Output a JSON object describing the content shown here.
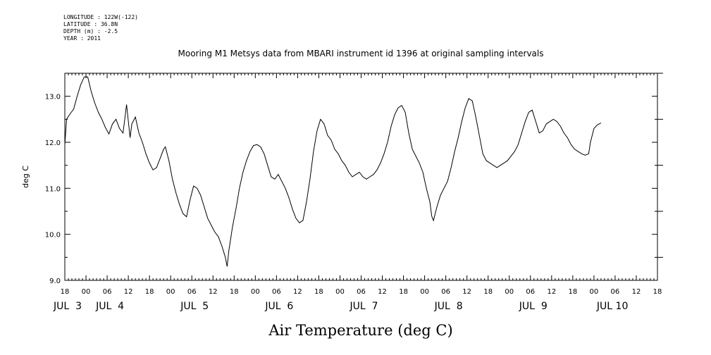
{
  "meta": {
    "longitude": "LONGITUDE : 122W(-122)",
    "latitude": "LATITUDE : 36.8N",
    "depth": "DEPTH (m) : -2.5",
    "year": "YEAR : 2011"
  },
  "chart_data": {
    "type": "line",
    "title": "Mooring M1 Metsys data from MBARI instrument id 1396 at original sampling intervals",
    "xlabel": "Air Temperature (deg C)",
    "ylabel": "deg C",
    "ylim": [
      9.0,
      13.5
    ],
    "yticks": [
      "9.0",
      "10.0",
      "11.0",
      "12.0",
      "13.0"
    ],
    "yticks_values": [
      9.0,
      10.0,
      11.0,
      12.0,
      13.0
    ],
    "xlim_hours": [
      -6,
      162
    ],
    "x_hour_tick_labels": [
      "18",
      "00",
      "06",
      "12",
      "18",
      "00",
      "06",
      "12",
      "18",
      "00",
      "06",
      "12",
      "18",
      "00",
      "06",
      "12",
      "18",
      "00",
      "06",
      "12",
      "18",
      "00",
      "06",
      "12",
      "18",
      "00",
      "06",
      "12",
      "18"
    ],
    "x_day_labels": [
      {
        "text": "JUL  3",
        "at_hour": -6
      },
      {
        "text": "JUL  4",
        "at_hour": 6
      },
      {
        "text": "JUL  5",
        "at_hour": 30
      },
      {
        "text": "JUL  6",
        "at_hour": 54
      },
      {
        "text": "JUL  7",
        "at_hour": 78
      },
      {
        "text": "JUL  8",
        "at_hour": 102
      },
      {
        "text": "JUL  9",
        "at_hour": 126
      },
      {
        "text": "JUL 10",
        "at_hour": 148
      }
    ],
    "grid": false,
    "series": [
      {
        "points": [
          [
            -6,
            11.95
          ],
          [
            -5.5,
            12.5
          ],
          [
            -4.5,
            12.62
          ],
          [
            -3.5,
            12.72
          ],
          [
            -2.5,
            13.0
          ],
          [
            -1.5,
            13.25
          ],
          [
            -0.5,
            13.42
          ],
          [
            0.5,
            13.42
          ],
          [
            1.5,
            13.1
          ],
          [
            2.5,
            12.85
          ],
          [
            3.5,
            12.65
          ],
          [
            4.5,
            12.5
          ],
          [
            5.5,
            12.32
          ],
          [
            6.5,
            12.18
          ],
          [
            7.5,
            12.4
          ],
          [
            8.5,
            12.5
          ],
          [
            9.5,
            12.3
          ],
          [
            10.5,
            12.2
          ],
          [
            11.5,
            12.82
          ],
          [
            12.5,
            12.1
          ],
          [
            13,
            12.4
          ],
          [
            14,
            12.55
          ],
          [
            15,
            12.2
          ],
          [
            16,
            12.0
          ],
          [
            17,
            11.75
          ],
          [
            18,
            11.55
          ],
          [
            19,
            11.4
          ],
          [
            20,
            11.45
          ],
          [
            21,
            11.65
          ],
          [
            22,
            11.85
          ],
          [
            22.5,
            11.9
          ],
          [
            23.5,
            11.6
          ],
          [
            24.5,
            11.2
          ],
          [
            25.5,
            10.9
          ],
          [
            26.5,
            10.65
          ],
          [
            27.5,
            10.45
          ],
          [
            28.5,
            10.38
          ],
          [
            29.5,
            10.75
          ],
          [
            30.5,
            11.05
          ],
          [
            31.5,
            11.0
          ],
          [
            32.5,
            10.85
          ],
          [
            33.5,
            10.6
          ],
          [
            34.5,
            10.35
          ],
          [
            35.5,
            10.2
          ],
          [
            36.5,
            10.05
          ],
          [
            37.5,
            9.95
          ],
          [
            38.5,
            9.75
          ],
          [
            39.5,
            9.5
          ],
          [
            40,
            9.3
          ],
          [
            40.5,
            9.65
          ],
          [
            41.5,
            10.15
          ],
          [
            42.5,
            10.55
          ],
          [
            43.5,
            11.0
          ],
          [
            44.5,
            11.35
          ],
          [
            45.5,
            11.6
          ],
          [
            46.5,
            11.8
          ],
          [
            47.5,
            11.93
          ],
          [
            48.5,
            11.95
          ],
          [
            49.5,
            11.9
          ],
          [
            50.5,
            11.75
          ],
          [
            51.5,
            11.5
          ],
          [
            52.5,
            11.25
          ],
          [
            53.5,
            11.2
          ],
          [
            54.5,
            11.3
          ],
          [
            55.5,
            11.15
          ],
          [
            56.5,
            11.0
          ],
          [
            57.5,
            10.8
          ],
          [
            58.5,
            10.55
          ],
          [
            59.5,
            10.35
          ],
          [
            60.5,
            10.25
          ],
          [
            61.5,
            10.3
          ],
          [
            62.5,
            10.7
          ],
          [
            63.5,
            11.2
          ],
          [
            64.5,
            11.8
          ],
          [
            65.5,
            12.25
          ],
          [
            66.5,
            12.5
          ],
          [
            67.5,
            12.4
          ],
          [
            68.5,
            12.15
          ],
          [
            69.5,
            12.05
          ],
          [
            70.5,
            11.85
          ],
          [
            71.5,
            11.75
          ],
          [
            72.5,
            11.6
          ],
          [
            73.5,
            11.5
          ],
          [
            74.5,
            11.35
          ],
          [
            75.5,
            11.25
          ],
          [
            76.5,
            11.3
          ],
          [
            77.5,
            11.35
          ],
          [
            78.5,
            11.25
          ],
          [
            79.5,
            11.2
          ],
          [
            80.5,
            11.25
          ],
          [
            81.5,
            11.3
          ],
          [
            82.5,
            11.4
          ],
          [
            83.5,
            11.55
          ],
          [
            84.5,
            11.75
          ],
          [
            85.5,
            12.0
          ],
          [
            86.5,
            12.35
          ],
          [
            87.5,
            12.6
          ],
          [
            88.5,
            12.75
          ],
          [
            89.5,
            12.8
          ],
          [
            90.5,
            12.65
          ],
          [
            91.5,
            12.2
          ],
          [
            92.5,
            11.85
          ],
          [
            93.5,
            11.7
          ],
          [
            94.5,
            11.55
          ],
          [
            95.5,
            11.35
          ],
          [
            96.5,
            11.0
          ],
          [
            97.5,
            10.7
          ],
          [
            98,
            10.4
          ],
          [
            98.5,
            10.3
          ],
          [
            99.5,
            10.6
          ],
          [
            100.5,
            10.85
          ],
          [
            101.5,
            11.0
          ],
          [
            102.5,
            11.15
          ],
          [
            103.5,
            11.45
          ],
          [
            104.5,
            11.8
          ],
          [
            105.5,
            12.1
          ],
          [
            106.5,
            12.45
          ],
          [
            107.5,
            12.75
          ],
          [
            108.5,
            12.95
          ],
          [
            109.5,
            12.9
          ],
          [
            110.5,
            12.55
          ],
          [
            111.5,
            12.15
          ],
          [
            112.5,
            11.75
          ],
          [
            113.5,
            11.6
          ],
          [
            114.5,
            11.55
          ],
          [
            115.5,
            11.5
          ],
          [
            116.5,
            11.45
          ],
          [
            117.5,
            11.5
          ],
          [
            118.5,
            11.55
          ],
          [
            119.5,
            11.6
          ],
          [
            120.5,
            11.7
          ],
          [
            121.5,
            11.8
          ],
          [
            122.5,
            11.95
          ],
          [
            123.5,
            12.2
          ],
          [
            124.5,
            12.45
          ],
          [
            125.5,
            12.65
          ],
          [
            126.5,
            12.7
          ],
          [
            127.5,
            12.45
          ],
          [
            128.5,
            12.2
          ],
          [
            129.5,
            12.25
          ],
          [
            130.5,
            12.4
          ],
          [
            131.5,
            12.45
          ],
          [
            132.5,
            12.5
          ],
          [
            133.5,
            12.45
          ],
          [
            134.5,
            12.35
          ],
          [
            135.5,
            12.2
          ],
          [
            136.5,
            12.1
          ],
          [
            137.5,
            11.95
          ],
          [
            138.5,
            11.85
          ],
          [
            139.5,
            11.8
          ],
          [
            140.5,
            11.75
          ],
          [
            141.5,
            11.72
          ],
          [
            142.5,
            11.75
          ],
          [
            143,
            12.0
          ],
          [
            144,
            12.3
          ],
          [
            145,
            12.38
          ],
          [
            146,
            12.42
          ]
        ]
      }
    ]
  }
}
